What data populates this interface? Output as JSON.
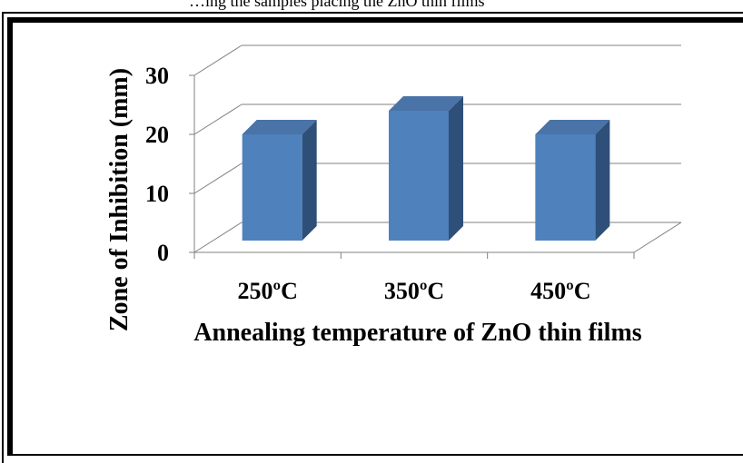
{
  "caption": "…ing the samples placing the ZnO thin films",
  "chart_data": {
    "type": "bar",
    "categories": [
      "250ºC",
      "350ºC",
      "450ºC"
    ],
    "values": [
      18,
      22,
      18
    ],
    "title": "",
    "xlabel": "Annealing temperature of ZnO thin films",
    "ylabel": "Zone of Inhibition  (mm)",
    "ylim": [
      0,
      35
    ],
    "yticks": [
      0,
      10,
      20,
      30
    ],
    "grid": true,
    "legend": "none",
    "colors": {
      "bar_front": "#4F81BD",
      "bar_top": "#4A73A8",
      "bar_side": "#2E4F78",
      "grid": "#808080"
    }
  }
}
